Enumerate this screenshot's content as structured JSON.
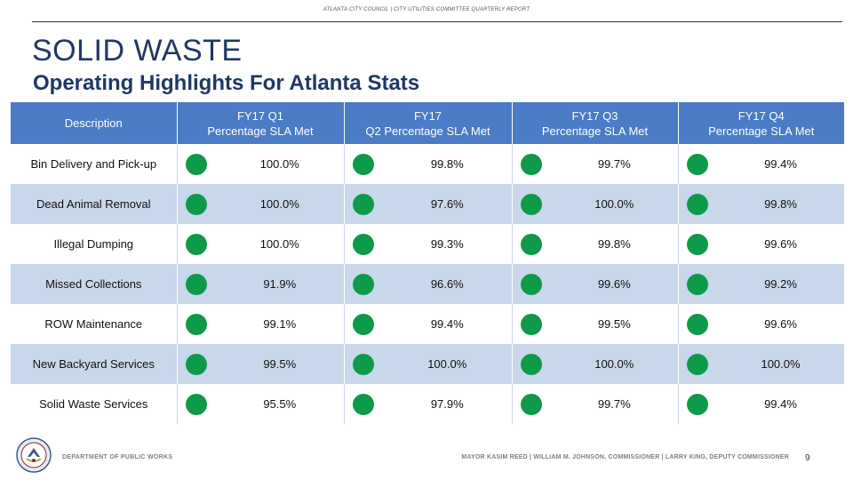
{
  "header": {
    "top_text": "ATLANTA CITY COUNCIL | CITY UTILITIES COMMITTEE QUARTERLY REPORT",
    "title": "SOLID WASTE",
    "subtitle": "Operating Highlights For Atlanta Stats"
  },
  "table": {
    "columns": [
      {
        "line1": "Description",
        "line2": ""
      },
      {
        "line1": "FY17 Q1",
        "line2": "Percentage SLA Met"
      },
      {
        "line1": "FY17",
        "line2": "Q2 Percentage SLA Met"
      },
      {
        "line1": "FY17 Q3",
        "line2": "Percentage SLA Met"
      },
      {
        "line1": "FY17 Q4",
        "line2": "Percentage SLA Met"
      }
    ],
    "indicator_color": "#0e9a48",
    "rows": [
      {
        "description": "Bin Delivery and Pick-up",
        "values": [
          "100.0%",
          "99.8%",
          "99.7%",
          "99.4%"
        ]
      },
      {
        "description": "Dead Animal Removal",
        "values": [
          "100.0%",
          "97.6%",
          "100.0%",
          "99.8%"
        ]
      },
      {
        "description": "Illegal Dumping",
        "values": [
          "100.0%",
          "99.3%",
          "99.8%",
          "99.6%"
        ]
      },
      {
        "description": "Missed Collections",
        "values": [
          "91.9%",
          "96.6%",
          "99.6%",
          "99.2%"
        ]
      },
      {
        "description": "ROW Maintenance",
        "values": [
          "99.1%",
          "99.4%",
          "99.5%",
          "99.6%"
        ]
      },
      {
        "description": "New Backyard Services",
        "values": [
          "99.5%",
          "100.0%",
          "100.0%",
          "100.0%"
        ]
      },
      {
        "description": "Solid Waste Services",
        "values": [
          "95.5%",
          "97.9%",
          "99.7%",
          "99.4%"
        ]
      }
    ]
  },
  "footer": {
    "left": "DEPARTMENT OF PUBLIC WORKS",
    "right": "MAYOR KASIM REED | WILLIAM M. JOHNSON, COMMISSIONER | LARRY KING, DEPUTY COMMISSIONER",
    "page_number": "9",
    "logo_icon": "city-seal-icon"
  }
}
